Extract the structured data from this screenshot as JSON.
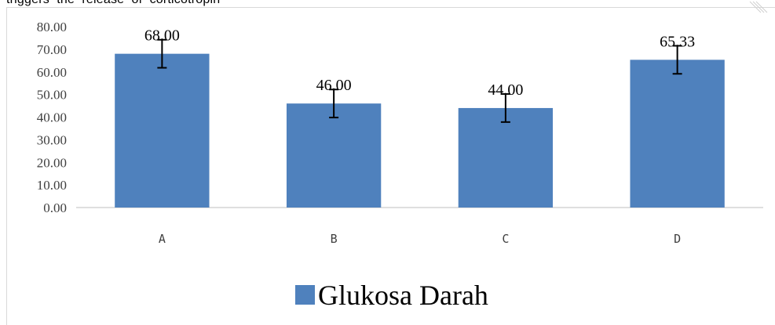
{
  "header_fragment": "triggers  the  release  of  corticotropin",
  "chart_data": {
    "type": "bar",
    "categories": [
      "A",
      "B",
      "C",
      "D"
    ],
    "series": [
      {
        "name": "Glukosa Darah",
        "values": [
          68.0,
          46.0,
          44.0,
          65.33
        ],
        "error": [
          6.2,
          6.2,
          6.2,
          6.2
        ]
      }
    ],
    "data_labels": [
      "68.00",
      "46.00",
      "44.00",
      "65.33"
    ],
    "y_ticks": [
      "0.00",
      "10.00",
      "20.00",
      "30.00",
      "40.00",
      "50.00",
      "60.00",
      "70.00",
      "80.00"
    ],
    "ylim": [
      0,
      80
    ],
    "grid": false,
    "legend": {
      "position": "bottom",
      "entries": [
        "Glukosa Darah"
      ]
    },
    "colors": {
      "bar": "#4f81bd",
      "axis": "#bfbfbf",
      "error_bar": "#000000"
    }
  }
}
